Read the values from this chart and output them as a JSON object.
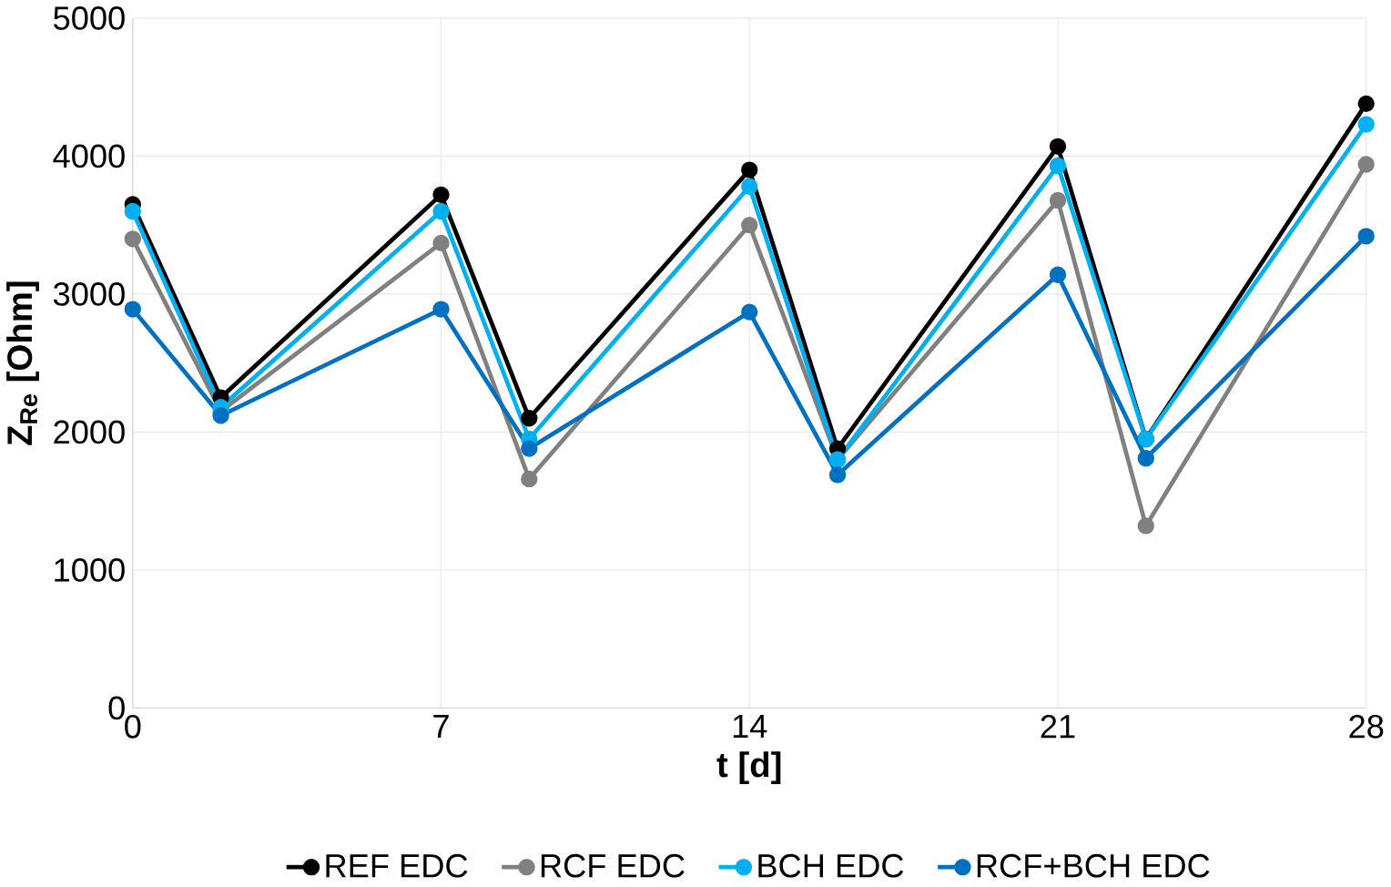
{
  "chart_data": {
    "type": "line",
    "xlabel": "t [d]",
    "ylabel": "Z$_{Re}$ [Ohm]",
    "x": [
      0,
      2,
      7,
      9,
      14,
      16,
      21,
      23,
      28
    ],
    "series": [
      {
        "name": "REF EDC",
        "color": "#000000",
        "values": [
          3650,
          2250,
          3720,
          2100,
          3900,
          1880,
          4070,
          1950,
          4380
        ]
      },
      {
        "name": "RCF EDC",
        "color": "#808080",
        "values": [
          3400,
          2150,
          3370,
          1660,
          3500,
          1800,
          3680,
          1320,
          3940
        ]
      },
      {
        "name": "BCH EDC",
        "color": "#00b0f0",
        "values": [
          3600,
          2180,
          3600,
          1950,
          3780,
          1800,
          3930,
          1950,
          4230
        ]
      },
      {
        "name": "RCF+BCH EDC",
        "color": "#0070c0",
        "values": [
          2890,
          2120,
          2890,
          1880,
          2870,
          1690,
          3140,
          1810,
          3420
        ]
      }
    ],
    "xlim": [
      0,
      28
    ],
    "ylim": [
      0,
      5000
    ],
    "xticks": [
      0,
      7,
      14,
      21,
      28
    ],
    "yticks": [
      0,
      1000,
      2000,
      3000,
      4000,
      5000
    ],
    "grid": true,
    "legend": "bottom",
    "marker": "circle",
    "line_style": "solid"
  }
}
